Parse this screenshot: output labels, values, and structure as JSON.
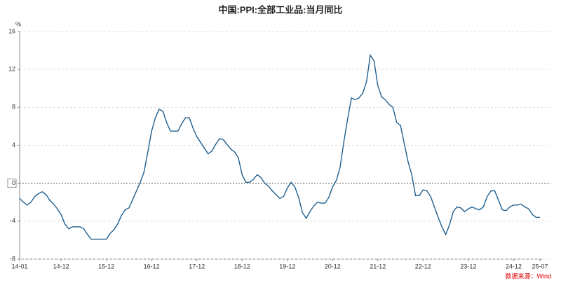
{
  "chart_data": {
    "type": "line",
    "title": "中国:PPI:全部工业品:当月同比",
    "y_unit": "%",
    "source": "数据来源：Wind",
    "categories": [
      "14-01",
      null,
      null,
      null,
      null,
      null,
      null,
      null,
      null,
      null,
      null,
      "14-12",
      null,
      null,
      null,
      null,
      null,
      null,
      null,
      null,
      null,
      null,
      null,
      "15-12",
      null,
      null,
      null,
      null,
      null,
      null,
      null,
      null,
      null,
      null,
      null,
      "16-12",
      null,
      null,
      null,
      null,
      null,
      null,
      null,
      null,
      null,
      null,
      null,
      "17-12",
      null,
      null,
      null,
      null,
      null,
      null,
      null,
      null,
      null,
      null,
      null,
      "18-12",
      null,
      null,
      null,
      null,
      null,
      null,
      null,
      null,
      null,
      null,
      null,
      "19-12",
      null,
      null,
      null,
      null,
      null,
      null,
      null,
      null,
      null,
      null,
      null,
      "20-12",
      null,
      null,
      null,
      null,
      null,
      null,
      null,
      null,
      null,
      null,
      null,
      "21-12",
      null,
      null,
      null,
      null,
      null,
      null,
      null,
      null,
      null,
      null,
      null,
      "22-12",
      null,
      null,
      null,
      null,
      null,
      null,
      null,
      null,
      null,
      null,
      null,
      "23-12",
      null,
      null,
      null,
      null,
      null,
      null,
      null,
      null,
      null,
      null,
      null,
      "24-12",
      null,
      null,
      null,
      null,
      null,
      null,
      "25-07"
    ],
    "values": [
      -1.6,
      -2.0,
      -2.3,
      -2.0,
      -1.4,
      -1.1,
      -0.9,
      -1.2,
      -1.8,
      -2.2,
      -2.7,
      -3.3,
      -4.3,
      -4.8,
      -4.6,
      -4.6,
      -4.6,
      -4.8,
      -5.4,
      -5.9,
      -5.9,
      -5.9,
      -5.9,
      -5.9,
      -5.3,
      -4.9,
      -4.3,
      -3.4,
      -2.8,
      -2.6,
      -1.7,
      -0.8,
      0.1,
      1.2,
      3.3,
      5.5,
      6.9,
      7.8,
      7.6,
      6.4,
      5.5,
      5.5,
      5.5,
      6.3,
      6.9,
      6.9,
      5.8,
      4.9,
      4.3,
      3.7,
      3.1,
      3.4,
      4.1,
      4.7,
      4.6,
      4.1,
      3.6,
      3.3,
      2.7,
      0.9,
      0.1,
      0.1,
      0.4,
      0.9,
      0.6,
      0.0,
      -0.3,
      -0.8,
      -1.2,
      -1.6,
      -1.4,
      -0.5,
      0.1,
      -0.4,
      -1.5,
      -3.1,
      -3.7,
      -3.0,
      -2.4,
      -2.0,
      -2.1,
      -2.1,
      -1.5,
      -0.4,
      0.3,
      1.7,
      4.4,
      6.8,
      9.0,
      8.8,
      9.0,
      9.5,
      10.7,
      13.5,
      12.9,
      10.3,
      9.1,
      8.8,
      8.3,
      8.0,
      6.4,
      6.1,
      4.2,
      2.3,
      0.9,
      -1.3,
      -1.3,
      -0.7,
      -0.8,
      -1.4,
      -2.5,
      -3.6,
      -4.6,
      -5.4,
      -4.4,
      -3.0,
      -2.5,
      -2.6,
      -3.0,
      -2.7,
      -2.5,
      -2.7,
      -2.8,
      -2.5,
      -1.4,
      -0.8,
      -0.8,
      -1.8,
      -2.8,
      -2.9,
      -2.5,
      -2.3,
      -2.3,
      -2.2,
      -2.5,
      -2.7,
      -3.3,
      -3.6,
      -3.6
    ],
    "color": "#1f5f8f",
    "ylim": [
      -8,
      16
    ],
    "yticks": [
      -8,
      -4,
      0,
      4,
      8,
      12,
      16
    ],
    "grid": true
  }
}
